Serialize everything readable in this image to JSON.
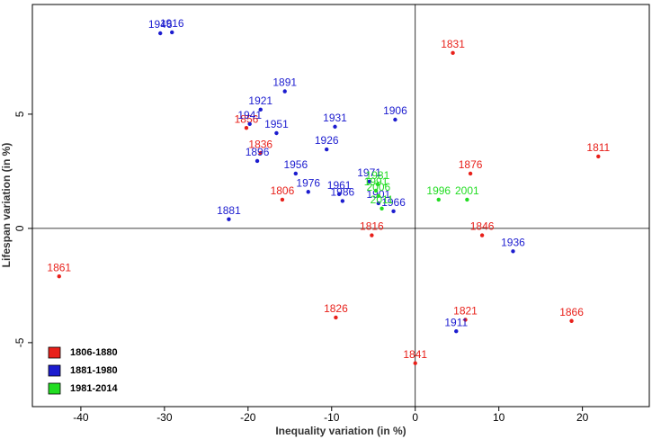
{
  "chart_data": {
    "type": "scatter",
    "x_label": "Inequality variation (in %)",
    "y_label": "Lifespan variation (in %)",
    "xlim": [
      -45.8,
      28
    ],
    "ylim": [
      -7.8,
      9.8
    ],
    "xticks": [
      -40,
      -30,
      -20,
      -10,
      0,
      10,
      20
    ],
    "yticks": [
      -5,
      0,
      5
    ],
    "hlines": [
      0
    ],
    "vlines": [
      0
    ],
    "grid": false,
    "legend_position": "bottom-left",
    "series": [
      {
        "name": "1806-1880",
        "color": "#e8201a",
        "labels": [
          "1831",
          "1811",
          "1876",
          "1806",
          "1836",
          "1856",
          "1816",
          "1846",
          "1861",
          "1826",
          "1821",
          "1866",
          "1841"
        ],
        "x": [
          4.5,
          21.9,
          6.6,
          -15.9,
          -18.5,
          -20.2,
          -5.2,
          8.0,
          -42.6,
          -9.5,
          6.0,
          18.7,
          0.0
        ],
        "y": [
          7.68,
          3.15,
          2.4,
          1.26,
          3.3,
          4.4,
          -0.3,
          -0.3,
          -2.1,
          -3.9,
          -4.0,
          -4.05,
          -5.9
        ]
      },
      {
        "name": "1881-1980",
        "color": "#1c1ccf",
        "labels": [
          "1916",
          "1946",
          "1891",
          "1921",
          "1941",
          "1951",
          "1931",
          "1906",
          "1926",
          "1896",
          "1956",
          "1971",
          "1976",
          "1961",
          "1986",
          "1901",
          "1966",
          "1881",
          "1936",
          "1911"
        ],
        "x": [
          -29.1,
          -30.5,
          -15.6,
          -18.5,
          -19.8,
          -16.6,
          -9.6,
          -2.4,
          -10.6,
          -18.9,
          -14.3,
          -5.5,
          -12.8,
          -9.1,
          -8.7,
          -4.4,
          -2.6,
          -22.3,
          11.7,
          4.9
        ],
        "y": [
          8.58,
          8.54,
          6.0,
          5.2,
          4.57,
          4.17,
          4.45,
          4.76,
          3.46,
          2.95,
          2.4,
          2.05,
          1.6,
          1.5,
          1.2,
          1.1,
          0.75,
          0.4,
          -1.0,
          -4.5
        ]
      },
      {
        "name": "1981-2014",
        "color": "#22dd22",
        "labels": [
          "1981",
          "1991",
          "2006",
          "2011",
          "1996",
          "2001"
        ],
        "x": [
          -4.5,
          -4.7,
          -4.4,
          -4.0,
          2.8,
          6.2
        ],
        "y": [
          1.93,
          1.65,
          1.42,
          0.87,
          1.26,
          1.26
        ]
      }
    ]
  }
}
